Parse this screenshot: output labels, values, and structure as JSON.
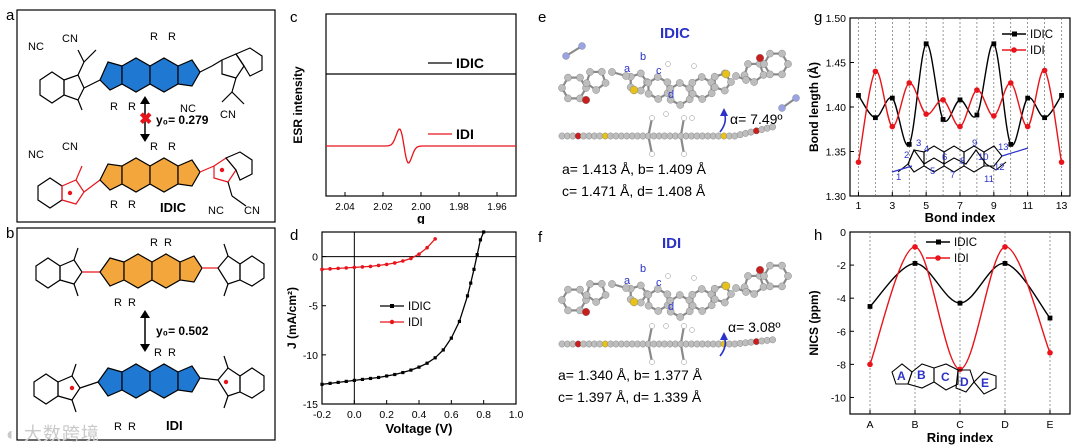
{
  "panels": {
    "a": {
      "letter": "a",
      "top_label": "IDIC",
      "y0_label": "y₀= 0.279",
      "cn": "CN",
      "nc": "NC",
      "r": "R"
    },
    "b": {
      "letter": "b",
      "bottom_label": "IDI",
      "y0_label": "y₀= 0.502",
      "r": "R"
    },
    "e": {
      "letter": "e",
      "title": "IDIC",
      "angle": "α= 7.49º",
      "bond_labels": [
        "a",
        "b",
        "c",
        "d"
      ],
      "lengths_line1": "a= 1.413 Å, b= 1.409 Å",
      "lengths_line2": "c= 1.471 Å, d= 1.408 Å"
    },
    "f": {
      "letter": "f",
      "title": "IDI",
      "angle": "α= 3.08º",
      "bond_labels": [
        "a",
        "b",
        "c",
        "d"
      ],
      "lengths_line1": "a= 1.340 Å, b= 1.377 Å",
      "lengths_line2": "c= 1.397 Å, d= 1.339 Å"
    }
  },
  "watermark": "大数跨境",
  "chart_data": [
    {
      "id": "c",
      "letter": "c",
      "type": "line",
      "xlabel": "g",
      "ylabel": "ESR intensity",
      "xlim": [
        2.05,
        1.95
      ],
      "xticks": [
        2.04,
        2.02,
        2.0,
        1.98,
        1.96
      ],
      "xtick_labels": [
        "2.04",
        "2.02",
        "2.00",
        "1.98",
        "1.96"
      ],
      "series": [
        {
          "name": "IDIC",
          "color": "#000000"
        },
        {
          "name": "IDI",
          "color": "#e8141b"
        }
      ]
    },
    {
      "id": "d",
      "letter": "d",
      "type": "line",
      "xlabel": "Voltage (V)",
      "ylabel": "J (mA/cm²)",
      "xlim": [
        -0.2,
        1.0
      ],
      "ylim": [
        -15,
        2.5
      ],
      "xticks": [
        -0.2,
        0.0,
        0.2,
        0.4,
        0.6,
        0.8,
        1.0
      ],
      "xtick_labels": [
        "-0.2",
        "0.0",
        "0.2",
        "0.4",
        "0.6",
        "0.8",
        "1.0"
      ],
      "yticks": [
        0,
        -5,
        -10,
        -15
      ],
      "ytick_labels": [
        "0",
        "-5",
        "-10",
        "-15"
      ],
      "series": [
        {
          "name": "IDIC",
          "color": "#000000",
          "x": [
            -0.2,
            -0.15,
            -0.1,
            -0.05,
            0,
            0.05,
            0.1,
            0.15,
            0.2,
            0.25,
            0.3,
            0.35,
            0.4,
            0.45,
            0.5,
            0.55,
            0.6,
            0.65,
            0.7,
            0.72,
            0.74,
            0.76,
            0.78,
            0.8
          ],
          "y": [
            -13.0,
            -12.9,
            -12.8,
            -12.7,
            -12.6,
            -12.5,
            -12.4,
            -12.3,
            -12.15,
            -12.0,
            -11.8,
            -11.55,
            -11.25,
            -10.85,
            -10.3,
            -9.5,
            -8.3,
            -6.6,
            -4.0,
            -2.7,
            -1.3,
            0.2,
            1.7,
            2.5
          ]
        },
        {
          "name": "IDI",
          "color": "#e8141b",
          "x": [
            -0.2,
            -0.15,
            -0.1,
            -0.05,
            0,
            0.05,
            0.1,
            0.15,
            0.2,
            0.25,
            0.3,
            0.35,
            0.4,
            0.45,
            0.5
          ],
          "y": [
            -1.3,
            -1.25,
            -1.2,
            -1.15,
            -1.1,
            -1.05,
            -1.0,
            -0.9,
            -0.8,
            -0.65,
            -0.45,
            -0.2,
            0.25,
            0.9,
            1.8
          ]
        }
      ]
    },
    {
      "id": "g",
      "letter": "g",
      "type": "line",
      "xlabel": "Bond index",
      "ylabel": "Bond length (Å)",
      "xlim": [
        0.5,
        13.5
      ],
      "ylim": [
        1.3,
        1.5
      ],
      "xticks": [
        1,
        3,
        5,
        7,
        9,
        11,
        13
      ],
      "xtick_labels": [
        "1",
        "3",
        "5",
        "7",
        "9",
        "11",
        "13"
      ],
      "yticks": [
        1.3,
        1.35,
        1.4,
        1.45,
        1.5
      ],
      "ytick_labels": [
        "1.30",
        "1.35",
        "1.40",
        "1.45",
        "1.50"
      ],
      "inset_labels": [
        "1",
        "2",
        "3",
        "4",
        "5",
        "6",
        "7",
        "8",
        "9",
        "10",
        "11",
        "12",
        "13"
      ],
      "series": [
        {
          "name": "IDIC",
          "color": "#000000",
          "x": [
            1,
            2,
            3,
            4,
            5,
            6,
            7,
            8,
            9,
            10,
            11,
            12,
            13
          ],
          "y": [
            1.413,
            1.388,
            1.41,
            1.358,
            1.471,
            1.386,
            1.408,
            1.391,
            1.471,
            1.358,
            1.41,
            1.388,
            1.413
          ]
        },
        {
          "name": "IDI",
          "color": "#e8141b",
          "x": [
            1,
            2,
            3,
            4,
            5,
            6,
            7,
            8,
            9,
            10,
            11,
            12,
            13
          ],
          "y": [
            1.338,
            1.44,
            1.378,
            1.427,
            1.392,
            1.408,
            1.378,
            1.419,
            1.39,
            1.427,
            1.378,
            1.441,
            1.338
          ]
        }
      ]
    },
    {
      "id": "h",
      "letter": "h",
      "type": "line",
      "xlabel": "Ring index",
      "ylabel": "NICS (ppm)",
      "categories": [
        "A",
        "B",
        "C",
        "D",
        "E"
      ],
      "ylim": [
        -11,
        0
      ],
      "yticks": [
        0,
        -2,
        -4,
        -6,
        -8,
        -10
      ],
      "ytick_labels": [
        "0",
        "-2",
        "-4",
        "-6",
        "-8",
        "-10"
      ],
      "inset_labels": [
        "A",
        "B",
        "C",
        "D",
        "E"
      ],
      "series": [
        {
          "name": "IDIC",
          "color": "#000000",
          "values": [
            -4.5,
            -1.9,
            -4.3,
            -1.9,
            -5.2
          ]
        },
        {
          "name": "IDI",
          "color": "#e8141b",
          "values": [
            -8.0,
            -0.9,
            -8.3,
            -0.9,
            -7.3
          ]
        }
      ]
    }
  ]
}
